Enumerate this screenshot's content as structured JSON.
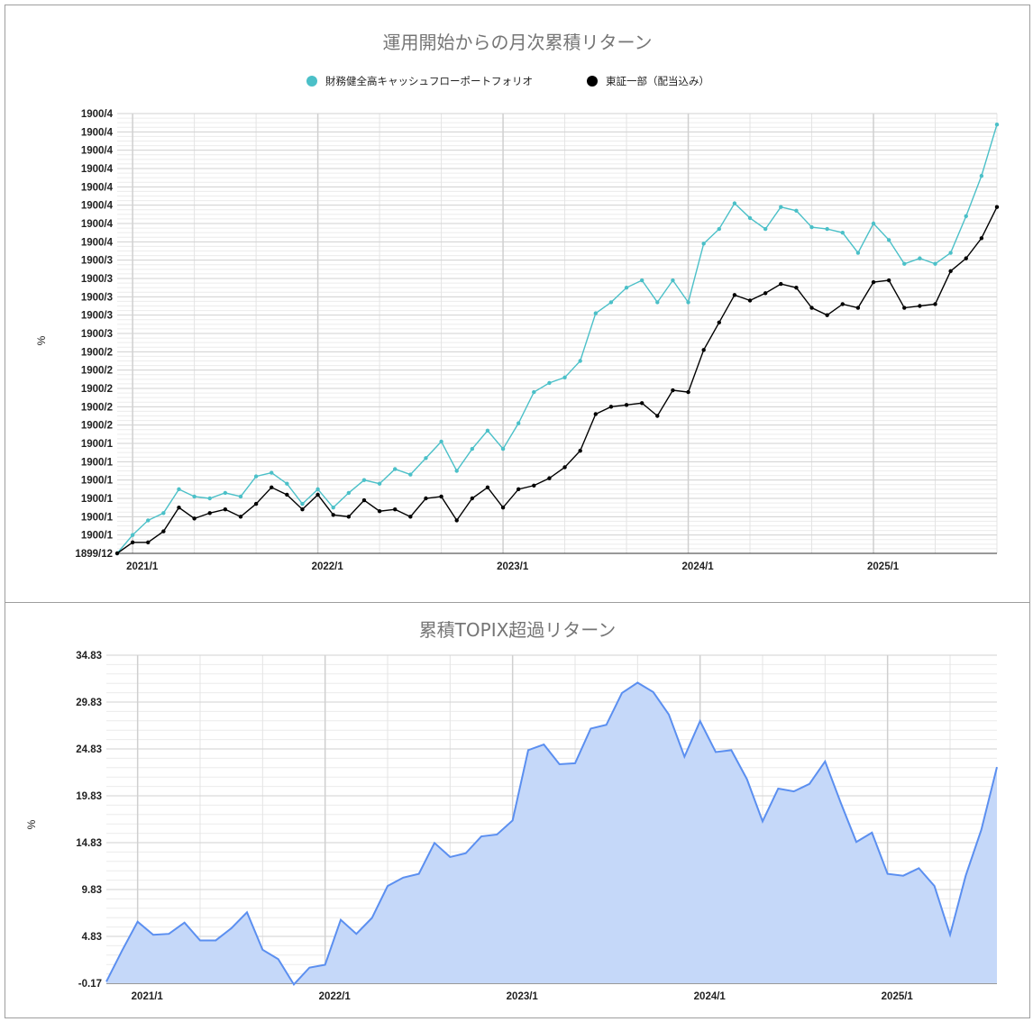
{
  "chart_data": [
    {
      "type": "line",
      "title": "運用開始からの月次累積リターン",
      "ylabel": "%",
      "y_tick_labels": [
        "1899/12",
        "1900/1",
        "1900/1",
        "1900/1",
        "1900/1",
        "1900/1",
        "1900/1",
        "1900/2",
        "1900/2",
        "1900/2",
        "1900/2",
        "1900/2",
        "1900/3",
        "1900/3",
        "1900/3",
        "1900/3",
        "1900/3",
        "1900/4",
        "1900/4",
        "1900/4",
        "1900/4",
        "1900/4",
        "1900/4",
        "1900/4",
        "1900/4"
      ],
      "x_tick_labels": [
        "2021/1",
        "2022/1",
        "2023/1",
        "2024/1",
        "2025/1"
      ],
      "ylim": [
        0,
        120
      ],
      "grid": true,
      "legend_position": "top",
      "series": [
        {
          "name": "財務健全高キャッシュフローポートフォリオ",
          "color": "#4bc0c8",
          "values": [
            0,
            5,
            9,
            11,
            17.5,
            15.5,
            15,
            16.5,
            15.5,
            21,
            22,
            19,
            13.5,
            17.5,
            12.5,
            16.5,
            20,
            19,
            23,
            21.5,
            26,
            30.5,
            22.5,
            28.5,
            33.5,
            28.5,
            35.5,
            44,
            46.5,
            48,
            52.5,
            65.5,
            68.5,
            72.5,
            74.5,
            68.5,
            74.5,
            68.5,
            84.5,
            88.5,
            95.5,
            91.5,
            88.5,
            94.5,
            93.5,
            89,
            88.5,
            87.5,
            82,
            90,
            85.5,
            79,
            80.5,
            79,
            82,
            92,
            103,
            117
          ]
        },
        {
          "name": "東証一部（配当込み）",
          "color": "#000000",
          "values": [
            0,
            3,
            3,
            6,
            12.5,
            9.5,
            11,
            12,
            10,
            13.5,
            18,
            16,
            12,
            16,
            10.5,
            10,
            14.5,
            11.5,
            12,
            10,
            15,
            15.5,
            9,
            15,
            18,
            12.5,
            17.5,
            18.5,
            20.5,
            23.5,
            28,
            38,
            40,
            40.5,
            41,
            37.5,
            44.5,
            44,
            55.5,
            63,
            70.5,
            69,
            71,
            73.5,
            72.5,
            67,
            65,
            68,
            67,
            74,
            74.5,
            67,
            67.5,
            68,
            77,
            80.5,
            86,
            94.5
          ]
        }
      ]
    },
    {
      "type": "area",
      "title": "累積TOPIX超過リターン",
      "ylabel": "%",
      "ylim": [
        -0.17,
        34.83
      ],
      "y_tick_labels": [
        "-0.17",
        "4.83",
        "9.83",
        "14.83",
        "19.83",
        "24.83",
        "29.83",
        "34.83"
      ],
      "x_tick_labels": [
        "2021/1",
        "2022/1",
        "2023/1",
        "2024/1",
        "2025/1"
      ],
      "grid": true,
      "series": [
        {
          "name": "",
          "color": "#5b8ff0",
          "fill": "#c5d8f9",
          "values": [
            0,
            3.3,
            6.4,
            5.0,
            5.1,
            6.3,
            4.4,
            4.4,
            5.7,
            7.4,
            3.4,
            2.4,
            -0.3,
            1.5,
            1.8,
            6.6,
            5.1,
            6.8,
            10.2,
            11.1,
            11.5,
            14.8,
            13.3,
            13.7,
            15.5,
            15.7,
            17.2,
            24.7,
            25.3,
            23.2,
            23.3,
            27.0,
            27.4,
            30.8,
            31.9,
            30.9,
            28.5,
            24.0,
            27.8,
            24.5,
            24.7,
            21.6,
            17.1,
            20.6,
            20.3,
            21.1,
            23.5,
            19.1,
            14.9,
            15.9,
            11.5,
            11.3,
            12.1,
            10.2,
            5.0,
            11.3,
            16.2,
            22.9
          ]
        }
      ]
    }
  ]
}
